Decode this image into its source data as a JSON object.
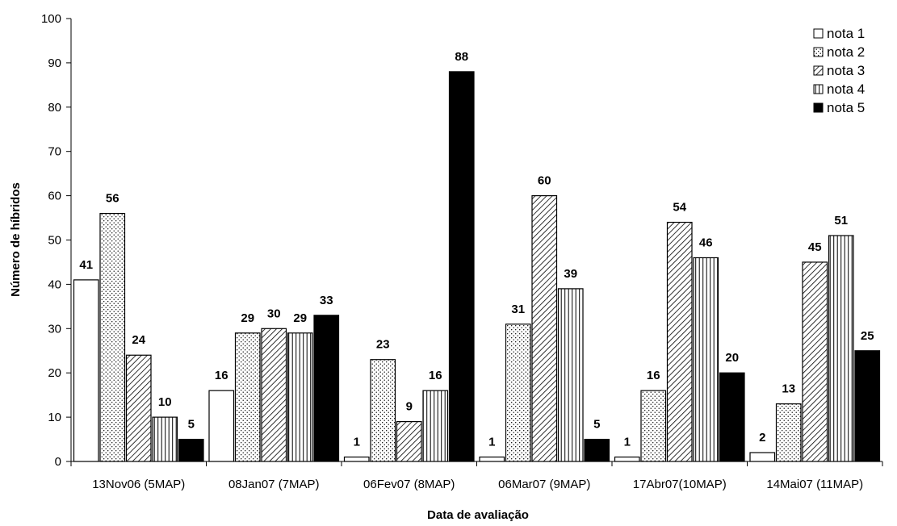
{
  "chart_data": {
    "type": "bar",
    "title": "",
    "xlabel": "Data de avaliação",
    "ylabel": "Número de híbridos",
    "ylim": [
      0,
      100
    ],
    "yticks": [
      0,
      10,
      20,
      30,
      40,
      50,
      60,
      70,
      80,
      90,
      100
    ],
    "grid": false,
    "legend_position": "top-right",
    "categories": [
      "13Nov06 (5MAP)",
      "08Jan07 (7MAP)",
      "06Fev07 (8MAP)",
      "06Mar07 (9MAP)",
      "17Abr07(10MAP)",
      "14Mai07 (11MAP)"
    ],
    "series": [
      {
        "name": "nota 1",
        "pattern": "white",
        "values": [
          41,
          16,
          1,
          1,
          1,
          2
        ]
      },
      {
        "name": "nota 2",
        "pattern": "dots",
        "values": [
          56,
          29,
          23,
          31,
          16,
          13
        ]
      },
      {
        "name": "nota 3",
        "pattern": "diagonal",
        "values": [
          24,
          30,
          9,
          60,
          54,
          45
        ]
      },
      {
        "name": "nota 4",
        "pattern": "vertical",
        "values": [
          10,
          29,
          16,
          39,
          46,
          51
        ]
      },
      {
        "name": "nota 5",
        "pattern": "black",
        "values": [
          5,
          33,
          88,
          5,
          20,
          25
        ]
      }
    ]
  }
}
